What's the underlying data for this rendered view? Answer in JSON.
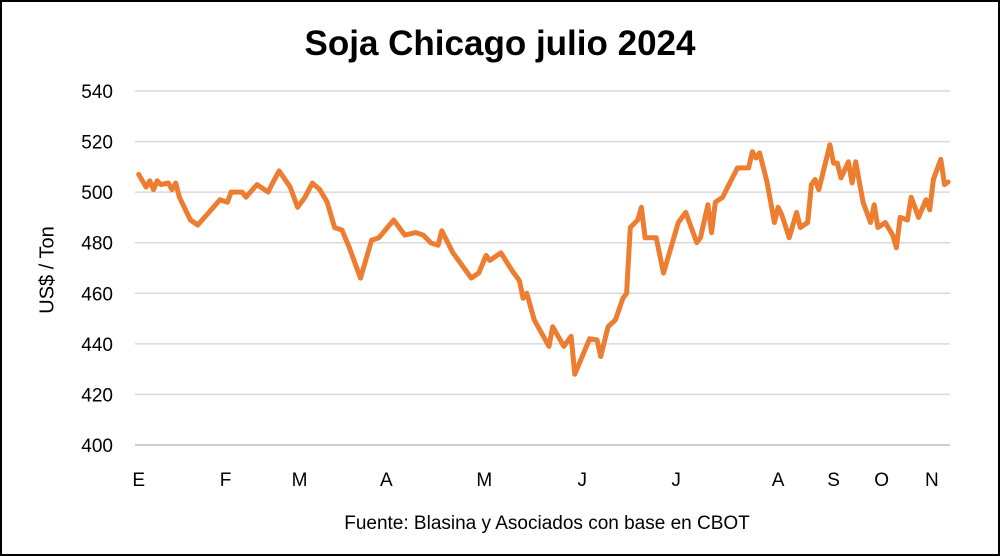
{
  "chart_data": {
    "type": "line",
    "title": "Soja Chicago julio 2024",
    "xlabel": "",
    "ylabel": "US$ / Ton",
    "source": "Fuente: Blasina y Asociados con base en CBOT",
    "ylim": [
      400,
      540
    ],
    "yticks": [
      400,
      420,
      440,
      460,
      480,
      500,
      520,
      540
    ],
    "xlim": [
      -1,
      219.5
    ],
    "grid": "horizontal",
    "legend": "none",
    "line_color": "#ED7D31",
    "xticks": [
      {
        "label": "E",
        "x": 0
      },
      {
        "label": "F",
        "x": 23.5
      },
      {
        "label": "M",
        "x": 43.5
      },
      {
        "label": "A",
        "x": 67
      },
      {
        "label": "M",
        "x": 93.5
      },
      {
        "label": "J",
        "x": 120
      },
      {
        "label": "J",
        "x": 145.4
      },
      {
        "label": "A",
        "x": 173
      },
      {
        "label": "S",
        "x": 188
      },
      {
        "label": "O",
        "x": 201
      },
      {
        "label": "N",
        "x": 214.6
      }
    ],
    "series": [
      {
        "x": [
          0,
          2,
          3,
          4,
          5,
          6,
          8,
          9,
          10,
          11,
          14,
          16,
          19,
          22,
          24,
          25,
          28,
          29,
          32,
          35,
          36,
          38,
          41,
          43,
          45,
          47,
          49,
          51,
          53,
          55,
          57,
          60,
          63,
          65,
          69,
          72,
          75,
          77,
          79,
          81,
          82,
          85,
          87,
          90,
          92,
          94,
          95,
          98,
          101,
          103,
          104,
          105,
          107,
          111,
          112,
          115,
          117,
          118,
          122,
          124,
          125,
          127,
          129,
          131,
          132,
          133,
          135,
          136,
          137,
          140,
          142,
          146,
          148,
          151,
          152,
          154,
          155,
          156,
          158,
          159,
          162,
          165,
          166,
          167,
          168,
          170,
          172,
          173,
          174,
          176,
          178,
          179,
          181,
          182,
          183,
          184,
          187,
          188,
          189,
          190,
          192,
          193,
          194,
          196,
          198,
          199,
          200,
          202,
          204,
          205,
          206,
          208,
          209,
          211,
          213,
          214,
          215,
          217,
          218,
          219
        ],
        "y": [
          507,
          502,
          504.5,
          501,
          504.5,
          503,
          503.6,
          501,
          503.6,
          498,
          489,
          487,
          492,
          497,
          496,
          500,
          500,
          498,
          503,
          500,
          503,
          508.4,
          502,
          494,
          498,
          503.6,
          501,
          496,
          486,
          485,
          478,
          466,
          481,
          482,
          489,
          483,
          484,
          483,
          480,
          479,
          484.7,
          476,
          472,
          466,
          468,
          475,
          473,
          476,
          469,
          465,
          458,
          460,
          449.5,
          439,
          446.8,
          439,
          443,
          428,
          442,
          441.6,
          435,
          446.8,
          449.5,
          458,
          460,
          486,
          489,
          494,
          482,
          482,
          468,
          488,
          492,
          480,
          482,
          495,
          484,
          496,
          498,
          501,
          509.6,
          509.6,
          516,
          513.5,
          515.5,
          504,
          488,
          494,
          491,
          482,
          492,
          486,
          488,
          503,
          505,
          501,
          518.7,
          511.5,
          511.5,
          505.6,
          512,
          503.6,
          512,
          496,
          488,
          495,
          486,
          488,
          483,
          478,
          490,
          489,
          498,
          490,
          497,
          493,
          505,
          513,
          503,
          504
        ]
      }
    ]
  }
}
